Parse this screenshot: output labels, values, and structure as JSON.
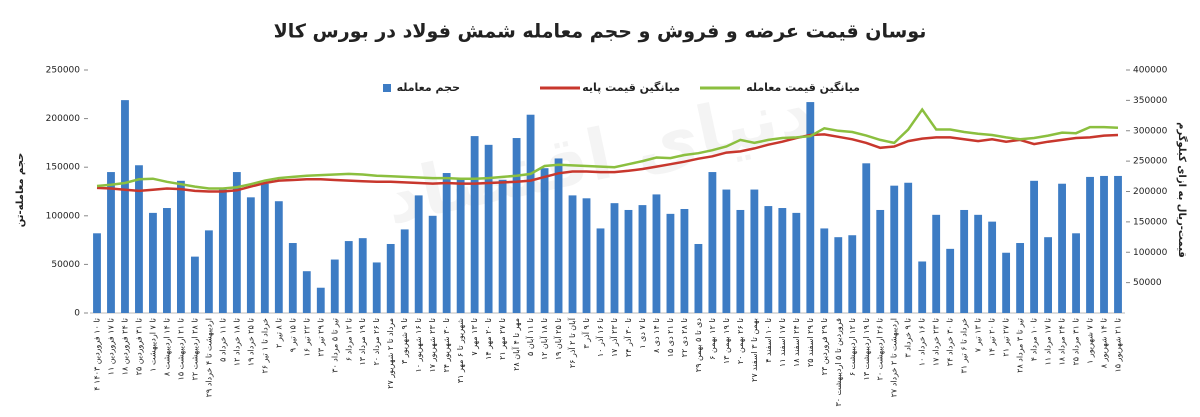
{
  "chart_data": {
    "type": "bar",
    "title": "نوسان قیمت عرضه و فروش و حجم معامله شمش فولاد در بورس کالا",
    "watermark": "دنیای اقتصاد",
    "ylabel": "حجم معامله-تن",
    "y2label": "قیمت-ریال به ازای کیلوگرم",
    "legend": "top",
    "categories": [
      "۴ تا ۱۰ فروردین ۱۴۰۳",
      "۱۱ تا ۱۷ فروردین",
      "۱۸ تا ۲۴ فروردین",
      "۲۵ تا ۳۱ فروردین",
      "۱ تا ۷ اردیبهشت",
      "۸ تا ۱۴ اردیبهشت",
      "۱۵ تا ۲۱ اردیبهشت",
      "۲۲ تا ۲۸ اردیبهشت",
      "۲۹ اردیبهشت تا ۴ خرداد",
      "۵ تا ۱۱ خرداد",
      "۱۲ تا ۱۸ خرداد",
      "۱۹ تا ۲۵ خرداد",
      "۲۶ خرداد تا ۱ تیر",
      "۲ تا ۸ تیر",
      "۹ تا ۱۵ تیر",
      "۱۶ تا ۲۲ تیر",
      "۲۳ تا ۲۹ تیر",
      "۳۰ تیر تا ۵ مرداد",
      "۶ تا ۱۲ مرداد",
      "۱۳ تا ۱۹ مرداد",
      "۲۰ تا ۲۶ مرداد",
      "۲۷ مرداد تا ۲ شهریور",
      "۳ تا ۹ شهریور",
      "۱۰ تا ۱۶ شهریور",
      "۱۷ تا ۲۳ شهریور",
      "۲۴ تا ۳۰ شهریور",
      "۳۱ شهریور تا ۶ مهر",
      "۷ تا ۱۳ مهر",
      "۱۴ تا ۲۰ مهر",
      "۲۱ تا ۲۷ مهر",
      "۲۸ مهر تا ۴ آبان",
      "۵ تا ۱۱ آبان",
      "۱۲ تا ۱۸ آبان",
      "۱۹ تا ۲۵ آبان",
      "۲۶ آبان تا ۲ آذر",
      "۳ تا ۹ آذر",
      "۱۰ تا ۱۶ آذر",
      "۱۷ تا ۲۳ آذر",
      "۲۴ تا ۳۰ آذر",
      "۱ تا ۷ دی",
      "۸ تا ۱۴ دی",
      "۱۵ تا ۲۱ دی",
      "۲۲ تا ۲۸ دی",
      "۲۹ دی تا ۵ بهمن",
      "۶ تا ۱۲ بهمن",
      "۱۳ تا ۱۹ بهمن",
      "۲۰ تا ۲۶ بهمن",
      "۲۷ بهمن تا ۳ اسفند",
      "۴ تا ۱۰ اسفند",
      "۱۱ تا ۱۷ اسفند",
      "۱۸ تا ۲۴ اسفند",
      "۲۵ تا ۲۹ اسفند",
      "۲۳ تا ۲۹ فروردین",
      "۳۰ فروردین تا ۵ اردیبهشت",
      "۶ تا ۱۲ اردیبهشت",
      "۱۳ تا ۱۹ اردیبهشت",
      "۲۰ تا ۲۶ اردیبهشت",
      "۲۷ اردیبهشت تا ۲ خرداد",
      "۳ تا ۹ خرداد",
      "۱۰ تا ۱۶ خرداد",
      "۱۷ تا ۲۳ خرداد",
      "۲۴ تا ۳۰ خرداد",
      "۳۱ خرداد تا ۶ تیر",
      "۷ تا ۱۳ تیر",
      "۱۴ تا ۲۰ تیر",
      "۲۱ تا ۲۷ تیر",
      "۲۸ تیر تا ۳ مرداد",
      "۴ تا ۱۰ مرداد",
      "۱۱ تا ۱۷ مرداد",
      "۱۸ تا ۲۴ مرداد",
      "۲۵ تا ۳۱ مرداد",
      "۱ تا ۷ شهریور",
      "۸ تا ۱۴ شهریور",
      "۱۵ تا ۲۱ شهریور"
    ],
    "series": [
      {
        "name": "حجم معامله",
        "type": "bar",
        "axis": "y",
        "color": "#3d7cc4",
        "values": [
          82000,
          145000,
          219000,
          152000,
          103000,
          108000,
          136000,
          58000,
          85000,
          127000,
          145000,
          119000,
          133000,
          115000,
          72000,
          43000,
          26000,
          55000,
          74000,
          77000,
          52000,
          71000,
          86000,
          121000,
          100000,
          144000,
          139000,
          182000,
          173000,
          137000,
          180000,
          204000,
          149000,
          159000,
          121000,
          118000,
          87000,
          113000,
          106000,
          111000,
          122000,
          102000,
          107000,
          71000,
          145000,
          127000,
          106000,
          127000,
          110000,
          108000,
          103000,
          217000,
          87000,
          78000,
          80000,
          154000,
          106000,
          131000,
          134000,
          53000,
          101000,
          66000,
          106000,
          101000,
          94000,
          62000,
          72000,
          136000,
          78000,
          133000,
          82000,
          140000,
          141000,
          141000
        ]
      },
      {
        "name": "میانگین قیمت پایه",
        "type": "line",
        "axis": "y2",
        "color": "#c8372d",
        "values": [
          206000,
          205000,
          203000,
          201000,
          203000,
          205000,
          204000,
          201000,
          200000,
          200000,
          202000,
          208000,
          214000,
          218000,
          219000,
          220000,
          220000,
          219000,
          218000,
          217000,
          216000,
          216000,
          215000,
          214000,
          213000,
          214000,
          213000,
          213000,
          214000,
          215000,
          216000,
          218000,
          224000,
          230000,
          233000,
          233000,
          232000,
          232000,
          234000,
          237000,
          241000,
          245000,
          249000,
          254000,
          258000,
          264000,
          266000,
          271000,
          277000,
          282000,
          288000,
          293000,
          294000,
          290000,
          286000,
          280000,
          272000,
          274000,
          283000,
          287000,
          289000,
          289000,
          286000,
          283000,
          286000,
          282000,
          285000,
          278000,
          282000,
          285000,
          288000,
          289000,
          292000,
          293000
        ]
      },
      {
        "name": "میانگین قیمت معامله",
        "type": "line",
        "axis": "y2",
        "color": "#8bbf3f",
        "values": [
          209000,
          211000,
          214000,
          220000,
          221000,
          216000,
          212000,
          208000,
          205000,
          205000,
          207000,
          212000,
          218000,
          222000,
          224000,
          226000,
          227000,
          228000,
          229000,
          228000,
          226000,
          225000,
          224000,
          223000,
          222000,
          222000,
          221000,
          221000,
          222000,
          224000,
          226000,
          229000,
          242000,
          244000,
          243000,
          242000,
          241000,
          240000,
          245000,
          250000,
          256000,
          255000,
          260000,
          263000,
          268000,
          274000,
          285000,
          280000,
          285000,
          288000,
          289000,
          291000,
          304000,
          300000,
          298000,
          292000,
          285000,
          280000,
          302000,
          335000,
          302000,
          302000,
          298000,
          295000,
          293000,
          289000,
          286000,
          288000,
          292000,
          297000,
          296000,
          306000,
          306000,
          305000
        ]
      }
    ],
    "ylim": [
      0,
      250000
    ],
    "yticks": [
      0,
      50000,
      100000,
      150000,
      200000,
      250000
    ],
    "y2lim": [
      0,
      400000
    ],
    "y2ticks": [
      50000,
      100000,
      150000,
      200000,
      250000,
      300000,
      350000,
      400000
    ]
  }
}
